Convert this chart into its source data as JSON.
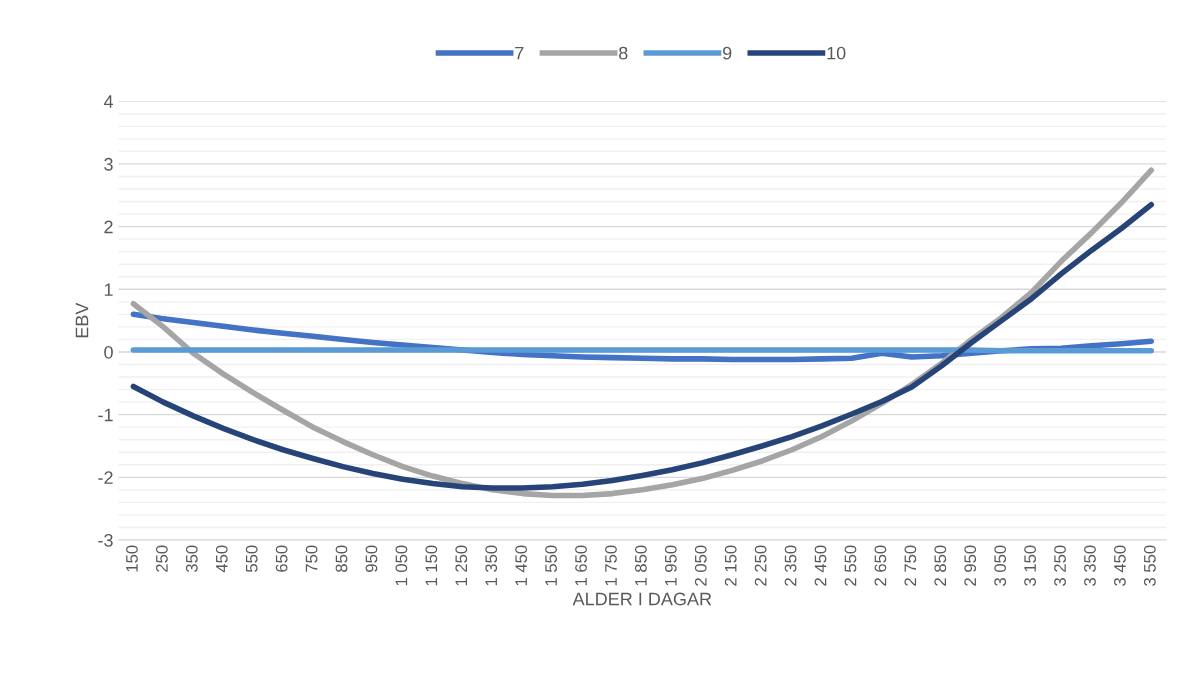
{
  "chart_data": {
    "type": "line",
    "xlabel": "ALDER I DAGAR",
    "ylabel": "EBV",
    "categories": [
      "150",
      "250",
      "350",
      "450",
      "550",
      "650",
      "750",
      "850",
      "950",
      "1 050",
      "1 150",
      "1 250",
      "1 350",
      "1 450",
      "1 550",
      "1 650",
      "1 750",
      "1 850",
      "1 950",
      "2 050",
      "2 150",
      "2 250",
      "2 350",
      "2 450",
      "2 550",
      "2 650",
      "2 750",
      "2 850",
      "2 950",
      "3 050",
      "3 150",
      "3 250",
      "3 350",
      "3 450",
      "3 550"
    ],
    "series": [
      {
        "name": "7",
        "color": "#4472c4",
        "values": [
          0.6,
          0.53,
          0.47,
          0.41,
          0.35,
          0.3,
          0.25,
          0.2,
          0.15,
          0.11,
          0.07,
          0.03,
          -0.01,
          -0.04,
          -0.06,
          -0.08,
          -0.09,
          -0.1,
          -0.11,
          -0.11,
          -0.12,
          -0.12,
          -0.12,
          -0.11,
          -0.1,
          -0.02,
          -0.08,
          -0.06,
          -0.02,
          0.02,
          0.05,
          0.06,
          0.1,
          0.13,
          0.17
        ]
      },
      {
        "name": "8",
        "color": "#a5a5a5",
        "values": [
          0.77,
          0.4,
          -0.02,
          -0.35,
          -0.65,
          -0.93,
          -1.2,
          -1.43,
          -1.64,
          -1.83,
          -1.98,
          -2.1,
          -2.2,
          -2.26,
          -2.29,
          -2.29,
          -2.26,
          -2.2,
          -2.12,
          -2.02,
          -1.89,
          -1.74,
          -1.56,
          -1.35,
          -1.1,
          -0.82,
          -0.52,
          -0.18,
          0.2,
          0.55,
          0.95,
          1.45,
          1.9,
          2.38,
          2.9
        ]
      },
      {
        "name": "9",
        "color": "#5b9bd5",
        "values": [
          0.03,
          0.03,
          0.03,
          0.03,
          0.03,
          0.03,
          0.03,
          0.03,
          0.03,
          0.03,
          0.03,
          0.03,
          0.03,
          0.03,
          0.03,
          0.03,
          0.03,
          0.03,
          0.03,
          0.03,
          0.03,
          0.03,
          0.03,
          0.03,
          0.03,
          0.03,
          0.03,
          0.03,
          0.03,
          0.02,
          0.02,
          0.02,
          0.02,
          0.02,
          0.02
        ]
      },
      {
        "name": "10",
        "color": "#264478",
        "values": [
          -0.55,
          -0.8,
          -1.02,
          -1.22,
          -1.4,
          -1.56,
          -1.7,
          -1.83,
          -1.94,
          -2.03,
          -2.1,
          -2.15,
          -2.17,
          -2.17,
          -2.15,
          -2.11,
          -2.05,
          -1.97,
          -1.88,
          -1.77,
          -1.64,
          -1.5,
          -1.35,
          -1.18,
          -0.99,
          -0.79,
          -0.56,
          -0.22,
          0.15,
          0.5,
          0.85,
          1.25,
          1.62,
          1.97,
          2.35
        ]
      }
    ],
    "ylim": [
      -3,
      4
    ],
    "yticks": [
      -3,
      {
        "value": -2.8,
        "label": null
      },
      {
        "value": -2.6,
        "label": null
      },
      {
        "value": -2.4,
        "label": null
      },
      {
        "value": -2.2,
        "label": null
      },
      -2,
      {
        "value": -1.8,
        "label": null
      },
      {
        "value": -1.6,
        "label": null
      },
      {
        "value": -1.4,
        "label": null
      },
      {
        "value": -1.2,
        "label": null
      },
      -1,
      {
        "value": -0.8,
        "label": null
      },
      {
        "value": -0.6,
        "label": null
      },
      {
        "value": -0.4,
        "label": null
      },
      {
        "value": -0.2,
        "label": null
      },
      0,
      {
        "value": 0.2,
        "label": null
      },
      {
        "value": 0.4,
        "label": null
      },
      {
        "value": 0.6,
        "label": null
      },
      {
        "value": 0.8,
        "label": null
      },
      1,
      {
        "value": 1.2,
        "label": null
      },
      {
        "value": 1.4,
        "label": null
      },
      {
        "value": 1.6,
        "label": null
      },
      {
        "value": 1.8,
        "label": null
      },
      2,
      {
        "value": 2.2,
        "label": null
      },
      {
        "value": 2.4,
        "label": null
      },
      {
        "value": 2.6,
        "label": null
      },
      {
        "value": 2.8,
        "label": null
      },
      3,
      {
        "value": 3.2,
        "label": null
      },
      {
        "value": 3.4,
        "label": null
      },
      {
        "value": 3.6,
        "label": null
      },
      {
        "value": 3.8,
        "label": null
      },
      4
    ],
    "grid": "y",
    "legend": "top",
    "marker": "none",
    "line_style": "solid"
  }
}
